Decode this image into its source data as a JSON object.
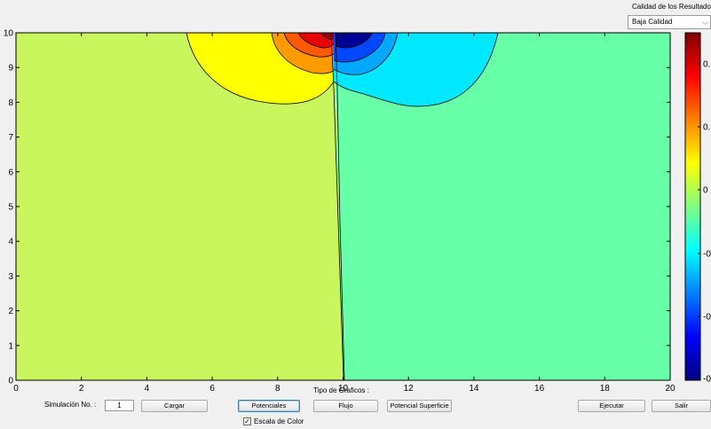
{
  "plot": {
    "xlim": [
      0,
      20
    ],
    "ylim": [
      0,
      10
    ],
    "x_ticks": [
      "0",
      "2",
      "4",
      "6",
      "8",
      "10",
      "12",
      "14",
      "16",
      "18",
      "20"
    ],
    "y_ticks": [
      "0",
      "1",
      "2",
      "3",
      "4",
      "5",
      "6",
      "7",
      "8",
      "9",
      "10"
    ],
    "colors": {
      "left_background": "#c9f65d",
      "right_background": "#67ffa8",
      "band_yellow": "#ffff00",
      "band_orange": "#ff9a00",
      "band_orange_red": "#ff5a00",
      "band_red": "#e80000",
      "band_dark_red": "#9a0000",
      "band_cyan": "#00e8ff",
      "band_sky": "#00a8ff",
      "band_blue": "#0048ff",
      "band_dark_blue": "#000095"
    }
  },
  "colorbar": {
    "tick_labels": [
      "0.",
      "0.",
      "0",
      "-0",
      "-0",
      "-0"
    ],
    "colormap": [
      "#800000",
      "#ff0000",
      "#ff8000",
      "#ffff00",
      "#80ff80",
      "#00ffff",
      "#0080ff",
      "#0000ff",
      "#000080"
    ]
  },
  "quality": {
    "label": "Calidad de los Resultados",
    "selected": "Baja Calidad"
  },
  "controls": {
    "tipo_label": "Tipo de Graficos :",
    "simulacion_label": "Simulación No. :",
    "simulacion_value": "1",
    "cargar": "Cargar",
    "potenciales": "Potenciales",
    "flujo": "Flujo",
    "potencial_superficie": "Potencial Superficie",
    "ejecutar": "Ejecutar",
    "salir": "Salir",
    "escala_label": "Escala de Color",
    "escala_checked": "✓"
  }
}
